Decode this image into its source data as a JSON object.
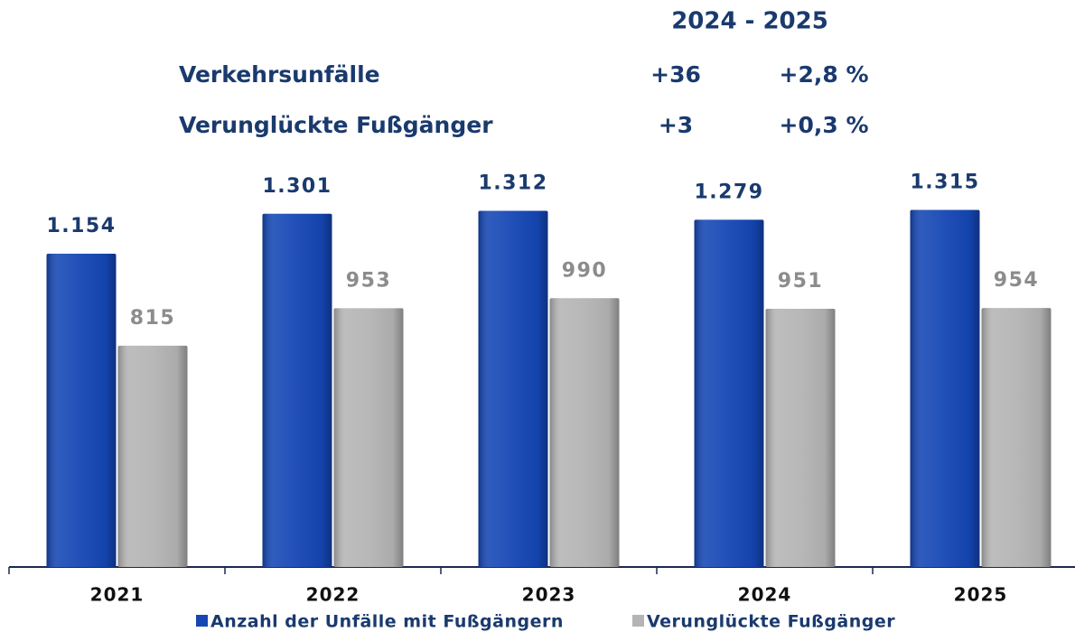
{
  "chart_data": {
    "type": "bar",
    "summary": {
      "period": "2024 - 2025",
      "rows": [
        {
          "label": "Verkehrsunfälle",
          "absolute": "+36",
          "percent": "+2,8 %"
        },
        {
          "label": "Verunglückte Fußgänger",
          "absolute": "+3",
          "percent": "+0,3 %"
        }
      ]
    },
    "categories": [
      "2021",
      "2022",
      "2023",
      "2024",
      "2025"
    ],
    "series": [
      {
        "name": "Anzahl der Unfälle mit Fußgängern",
        "color": "#1446b4",
        "values": [
          1154,
          1301,
          1312,
          1279,
          1315
        ],
        "value_labels": [
          "1.154",
          "1.301",
          "1.312",
          "1.279",
          "1.315"
        ]
      },
      {
        "name": "Verunglückte Fußgänger",
        "color": "#b4b4b4",
        "values": [
          815,
          953,
          990,
          951,
          954
        ],
        "value_labels": [
          "815",
          "953",
          "990",
          "951",
          "954"
        ]
      }
    ],
    "ylim": [
      0,
      1400
    ],
    "grid": false
  }
}
